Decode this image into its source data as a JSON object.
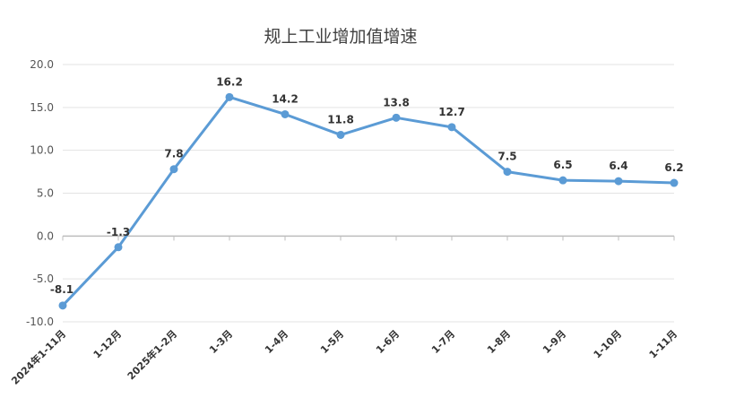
{
  "chart_data": {
    "type": "line",
    "title": "规上工业增加值增速",
    "xlabel": "",
    "ylabel": "",
    "categories": [
      "2024年1-11月",
      "1-12月",
      "2025年1-2月",
      "1-3月",
      "1-4月",
      "1-5月",
      "1-6月",
      "1-7月",
      "1-8月",
      "1-9月",
      "1-10月",
      "1-11月"
    ],
    "series": [
      {
        "values": [
          -8.1,
          -1.3,
          7.8,
          16.2,
          14.2,
          11.8,
          13.8,
          12.7,
          7.5,
          6.5,
          6.4,
          6.2
        ]
      }
    ],
    "ylim": [
      -10,
      20
    ],
    "yticks": [
      "-10.0",
      "-5.0",
      "0.0",
      "5.0",
      "10.0",
      "15.0",
      "20.0"
    ],
    "data_labels": [
      "-8.1",
      "-1.3",
      "7.8",
      "16.2",
      "14.2",
      "11.8",
      "13.8",
      "12.7",
      "7.5",
      "6.5",
      "6.4",
      "6.2"
    ],
    "grid": true,
    "legend": "none",
    "colors": {
      "line": "#5b9bd5",
      "grid": "#e3e3e3",
      "text": "#333333"
    }
  }
}
